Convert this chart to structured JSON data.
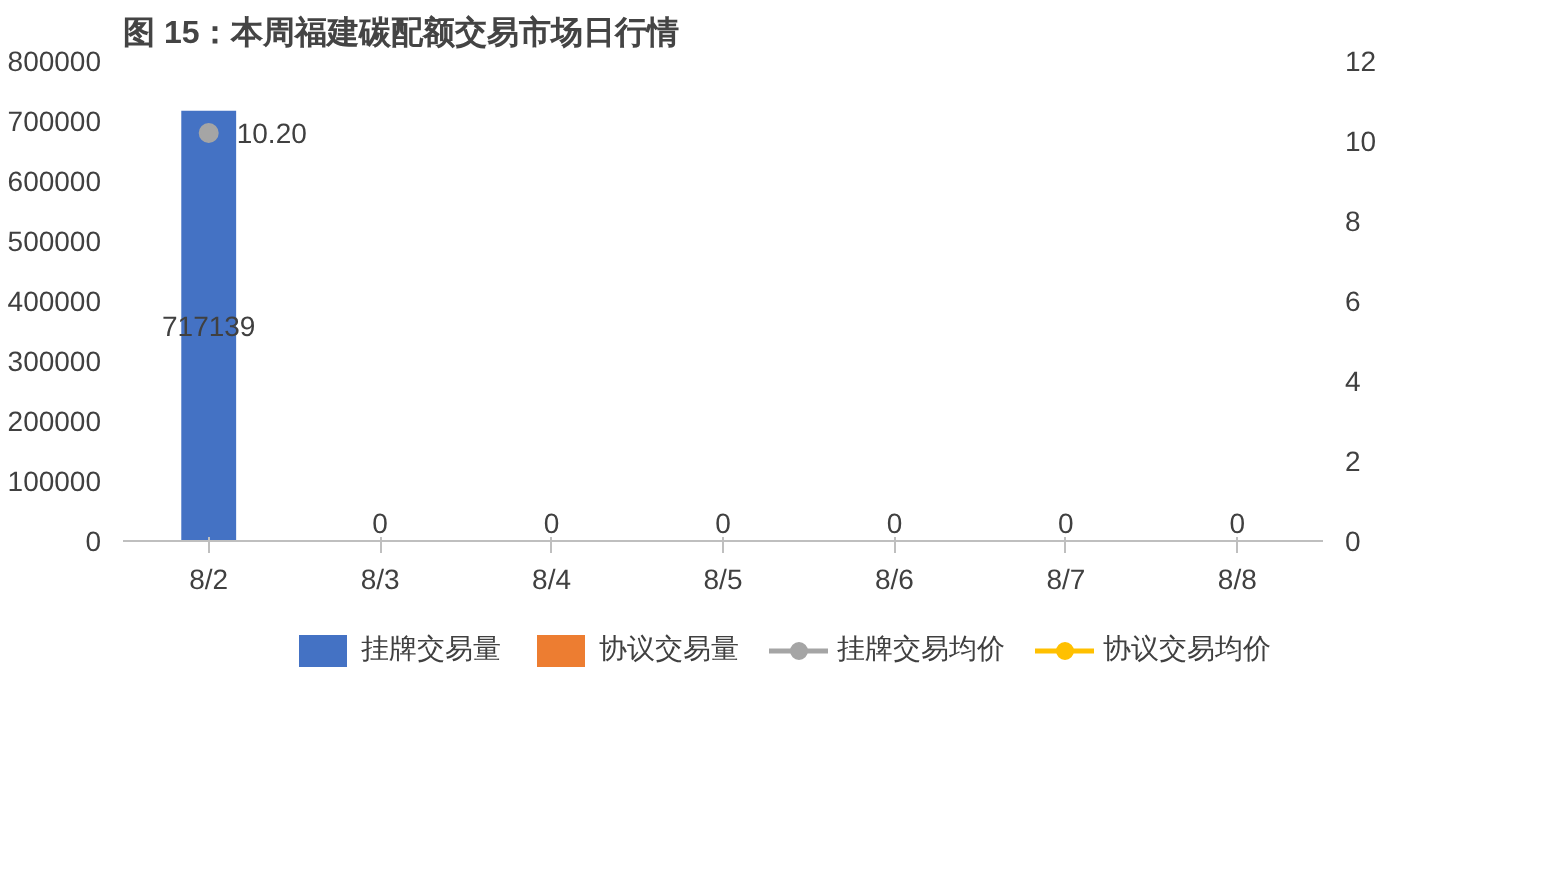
{
  "chart_data": {
    "type": "bar",
    "title": "图 15：本周福建碳配额交易市场日行情",
    "categories": [
      "8/2",
      "8/3",
      "8/4",
      "8/5",
      "8/6",
      "8/7",
      "8/8"
    ],
    "series": [
      {
        "name": "挂牌交易量",
        "color": "#4472c4",
        "values": [
          717139,
          0,
          0,
          0,
          0,
          0,
          0
        ],
        "value_labels": [
          "717139",
          "0",
          "0",
          "0",
          "0",
          "0",
          "0"
        ]
      },
      {
        "name": "协议交易量",
        "color": "#ed7d31",
        "values": [
          null,
          null,
          null,
          null,
          null,
          null,
          null
        ]
      },
      {
        "name": "挂牌交易均价",
        "type": "line",
        "axis": "y2",
        "color": "#a5a5a5",
        "marker": "circle",
        "values": [
          10.2,
          null,
          null,
          null,
          null,
          null,
          null
        ],
        "value_labels": [
          "10.20",
          null,
          null,
          null,
          null,
          null,
          null
        ]
      },
      {
        "name": "协议交易均价",
        "type": "line",
        "axis": "y2",
        "color": "#ffc000",
        "marker": "circle",
        "values": [
          null,
          null,
          null,
          null,
          null,
          null,
          null
        ]
      }
    ],
    "ylim": [
      0,
      800000
    ],
    "yticks": [
      0,
      100000,
      200000,
      300000,
      400000,
      500000,
      600000,
      700000,
      800000
    ],
    "y2lim": [
      0,
      12
    ],
    "y2ticks": [
      0,
      2,
      4,
      6,
      8,
      10,
      12
    ],
    "legend": "bottom",
    "grid": false
  }
}
